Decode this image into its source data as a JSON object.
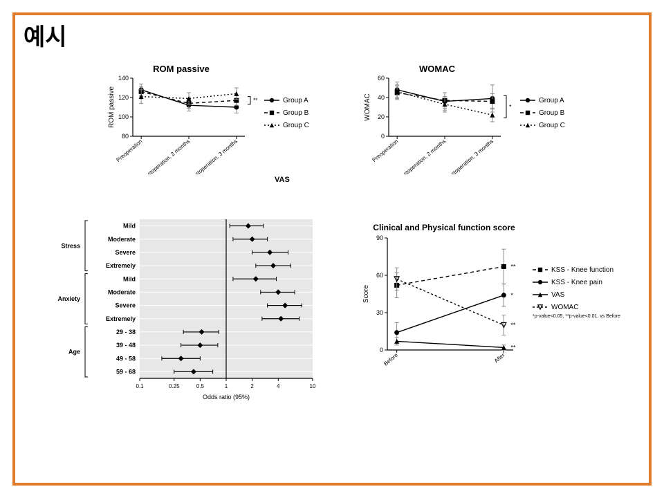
{
  "title": "예시",
  "vas_label": "VAS",
  "chart_rom": {
    "type": "line-errorbar",
    "title": "ROM passive",
    "ylabel": "ROM passive",
    "ylim": [
      80,
      140
    ],
    "ytick_step": 20,
    "x_categories": [
      "Preoperation",
      "Postoperation, 2 months",
      "Postoperation, 3 months"
    ],
    "series": [
      {
        "name": "Group A",
        "marker": "circle",
        "dash": "solid",
        "color": "#000000",
        "y": [
          128,
          112,
          110
        ],
        "err": [
          6,
          6,
          6
        ]
      },
      {
        "name": "Group B",
        "marker": "square",
        "dash": "5,4",
        "color": "#000000",
        "y": [
          126,
          114,
          117
        ],
        "err": [
          5,
          5,
          5
        ]
      },
      {
        "name": "Group C",
        "marker": "triangle",
        "dash": "2,3",
        "color": "#000000",
        "y": [
          121,
          119,
          124
        ],
        "err": [
          7,
          6,
          6
        ]
      }
    ],
    "bracket_note": "**",
    "axis_color": "#000000",
    "line_width": 1.4,
    "title_fontsize": 13,
    "label_fontsize": 10,
    "tick_fontsize": 9
  },
  "chart_womac": {
    "type": "line-errorbar",
    "title": "WOMAC",
    "ylabel": "WOMAC",
    "ylim": [
      0,
      60
    ],
    "ytick_step": 20,
    "x_categories": [
      "Preoperation",
      "Postoperation, 2 months",
      "Postoperation, 3 months"
    ],
    "series": [
      {
        "name": "Group A",
        "marker": "circle",
        "dash": "solid",
        "color": "#000000",
        "y": [
          48,
          36,
          39
        ],
        "err": [
          8,
          9,
          14
        ]
      },
      {
        "name": "Group B",
        "marker": "square",
        "dash": "5,4",
        "color": "#000000",
        "y": [
          45,
          37,
          36
        ],
        "err": [
          7,
          8,
          8
        ]
      },
      {
        "name": "Group C",
        "marker": "triangle",
        "dash": "2,3",
        "color": "#000000",
        "y": [
          46,
          33,
          22
        ],
        "err": [
          7,
          8,
          7
        ]
      }
    ],
    "bracket_note": "*",
    "axis_color": "#000000",
    "line_width": 1.4,
    "title_fontsize": 13,
    "label_fontsize": 10,
    "tick_fontsize": 9
  },
  "forest": {
    "type": "forest",
    "xlabel": "Odds ratio (95%)",
    "xscale": "log",
    "xticks": [
      0.1,
      0.25,
      0.5,
      1,
      2,
      4,
      10
    ],
    "ref_line": 1,
    "background": "#e7e7e7",
    "grid_color": "#ffffff",
    "axis_color": "#000000",
    "groups": [
      {
        "label": "Stress",
        "rows": [
          {
            "label": "Mild",
            "or": 1.8,
            "lo": 1.1,
            "hi": 2.7
          },
          {
            "label": "Moderate",
            "or": 2.0,
            "lo": 1.2,
            "hi": 3.0
          },
          {
            "label": "Severe",
            "or": 3.2,
            "lo": 2.0,
            "hi": 5.2
          },
          {
            "label": "Extremely",
            "or": 3.5,
            "lo": 2.2,
            "hi": 5.6
          }
        ]
      },
      {
        "label": "Anxiety",
        "rows": [
          {
            "label": "Mild",
            "or": 2.2,
            "lo": 1.2,
            "hi": 3.8
          },
          {
            "label": "Moderate",
            "or": 4.0,
            "lo": 2.5,
            "hi": 6.2
          },
          {
            "label": "Severe",
            "or": 4.8,
            "lo": 3.0,
            "hi": 7.5
          },
          {
            "label": "Extremely",
            "or": 4.3,
            "lo": 2.6,
            "hi": 7.0
          }
        ]
      },
      {
        "label": "Age",
        "rows": [
          {
            "label": "29 - 38",
            "or": 0.52,
            "lo": 0.32,
            "hi": 0.82
          },
          {
            "label": "39 - 48",
            "or": 0.5,
            "lo": 0.3,
            "hi": 0.8
          },
          {
            "label": "49 - 58",
            "or": 0.3,
            "lo": 0.18,
            "hi": 0.5
          },
          {
            "label": "59 - 68",
            "or": 0.42,
            "lo": 0.25,
            "hi": 0.7
          }
        ]
      }
    ],
    "title_fontsize": 10,
    "label_fontsize": 9,
    "tick_fontsize": 8,
    "marker_color": "#000000"
  },
  "chart_clin": {
    "type": "line-errorbar",
    "title": "Clinical and Physical function score",
    "ylabel": "Score",
    "ylim": [
      0,
      90
    ],
    "ytick_step": 30,
    "x_categories": [
      "Before",
      "After"
    ],
    "series": [
      {
        "name": "KSS - Knee function",
        "marker": "square",
        "dash": "5,4",
        "color": "#000000",
        "y": [
          52,
          67
        ],
        "err": [
          10,
          14
        ],
        "sig": "**"
      },
      {
        "name": "KSS - Knee pain",
        "marker": "circle",
        "dash": "solid",
        "color": "#000000",
        "y": [
          14,
          44
        ],
        "err": [
          8,
          9
        ],
        "sig": "*"
      },
      {
        "name": "VAS",
        "marker": "triangle",
        "dash": "solid",
        "color": "#000000",
        "y": [
          7,
          2
        ],
        "err": [
          3,
          2
        ],
        "sig": "**"
      },
      {
        "name": "WOMAC",
        "marker": "triangle-down",
        "dash": "3,3",
        "color": "#000000",
        "y": [
          57,
          20
        ],
        "err": [
          9,
          8
        ],
        "sig": "**"
      }
    ],
    "footnote": "*p-value<0.05, **p-value<0.01, vs Before",
    "axis_color": "#000000",
    "line_width": 1.4,
    "title_fontsize": 12,
    "label_fontsize": 10,
    "tick_fontsize": 9
  }
}
